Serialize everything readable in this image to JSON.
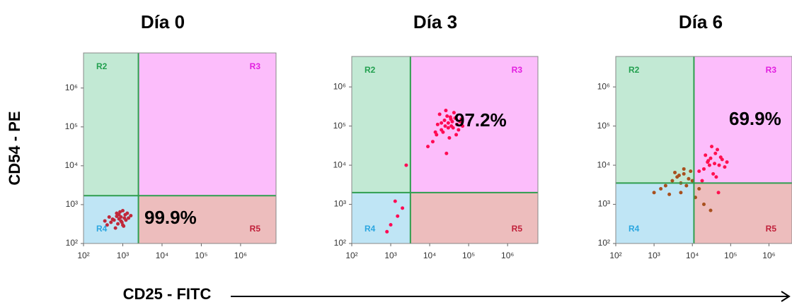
{
  "axis_labels": {
    "y": "CD54 - PE",
    "x": "CD25 - FITC"
  },
  "chart_data": [
    {
      "type": "scatter",
      "title": "Día 0",
      "xscale": "log",
      "yscale": "log",
      "xlim": [
        100,
        8000000
      ],
      "ylim": [
        100,
        8000000
      ],
      "xticks": [
        {
          "value": 100,
          "label": "10²"
        },
        {
          "value": 1000,
          "label": "10³"
        },
        {
          "value": 10000,
          "label": "10⁴"
        },
        {
          "value": 100000,
          "label": "10⁵"
        },
        {
          "value": 1000000,
          "label": "10⁶"
        }
      ],
      "yticks": [
        {
          "value": 100,
          "label": "10²"
        },
        {
          "value": 1000,
          "label": "10³"
        },
        {
          "value": 10000,
          "label": "10⁴"
        },
        {
          "value": 100000,
          "label": "10⁵"
        },
        {
          "value": 1000000,
          "label": "10⁶"
        }
      ],
      "gate_x": 2500,
      "gate_y": 1700,
      "regions": [
        {
          "name": "R2",
          "color": "#c2e9d4",
          "label_color": "#22a04f"
        },
        {
          "name": "R3",
          "color": "#fcbdfb",
          "label_color": "#e21fe0"
        },
        {
          "name": "R4",
          "color": "#bfe5f5",
          "label_color": "#2ba6e0"
        },
        {
          "name": "R5",
          "color": "#edbdbd",
          "label_color": "#c0203a"
        }
      ],
      "annotation": "99.9%",
      "series": [
        {
          "color": "#c0283a",
          "x": [
            400,
            550,
            700,
            900,
            1100,
            1300,
            650,
            800,
            1000,
            500,
            450,
            1200,
            1600,
            750,
            950,
            850,
            600,
            1050,
            1400,
            350,
            700,
            900,
            1150,
            800,
            1000
          ],
          "y": [
            300,
            420,
            500,
            380,
            450,
            600,
            250,
            550,
            700,
            350,
            480,
            400,
            520,
            320,
            350,
            650,
            400,
            280,
            450,
            380,
            600,
            480,
            550,
            430,
            300
          ]
        }
      ]
    },
    {
      "type": "scatter",
      "title": "Día 3",
      "xscale": "log",
      "yscale": "log",
      "xlim": [
        100,
        6000000
      ],
      "ylim": [
        100,
        6000000
      ],
      "xticks": [
        {
          "value": 100,
          "label": "10²"
        },
        {
          "value": 1000,
          "label": "10³"
        },
        {
          "value": 10000,
          "label": "10⁴"
        },
        {
          "value": 100000,
          "label": "10⁵"
        },
        {
          "value": 1000000,
          "label": "10⁶"
        }
      ],
      "yticks": [
        {
          "value": 100,
          "label": "10²"
        },
        {
          "value": 1000,
          "label": "10³"
        },
        {
          "value": 10000,
          "label": "10⁴"
        },
        {
          "value": 100000,
          "label": "10⁵"
        },
        {
          "value": 1000000,
          "label": "10⁶"
        }
      ],
      "gate_x": 3200,
      "gate_y": 2000,
      "regions": [
        {
          "name": "R2",
          "color": "#c2e9d4",
          "label_color": "#22a04f"
        },
        {
          "name": "R3",
          "color": "#fcbdfb",
          "label_color": "#e21fe0"
        },
        {
          "name": "R4",
          "color": "#bfe5f5",
          "label_color": "#2ba6e0"
        },
        {
          "name": "R5",
          "color": "#edbdbd",
          "label_color": "#c0203a"
        }
      ],
      "annotation": "97.2%",
      "series": [
        {
          "color": "#ff0a54",
          "x": [
            15000,
            20000,
            25000,
            30000,
            35000,
            40000,
            50000,
            60000,
            12000,
            18000,
            22000,
            28000,
            45000,
            70000,
            32000,
            26000,
            38000,
            55000,
            9000,
            16000,
            42000,
            24000,
            30000,
            48000,
            20000,
            34000,
            65000,
            14000,
            27000,
            36000,
            1000,
            1500,
            2000,
            1300,
            800,
            2500
          ],
          "y": [
            60000,
            80000,
            100000,
            120000,
            150000,
            90000,
            110000,
            130000,
            40000,
            200000,
            70000,
            180000,
            160000,
            100000,
            50000,
            250000,
            130000,
            80000,
            30000,
            110000,
            220000,
            140000,
            90000,
            60000,
            120000,
            170000,
            150000,
            70000,
            20000,
            100000,
            300,
            500,
            800,
            1200,
            200,
            10000
          ]
        }
      ]
    },
    {
      "type": "scatter",
      "title": "Día 6",
      "xscale": "log",
      "yscale": "log",
      "xlim": [
        100,
        4000000
      ],
      "ylim": [
        100,
        6000000
      ],
      "xticks": [
        {
          "value": 100,
          "label": "10²"
        },
        {
          "value": 1000,
          "label": "10³"
        },
        {
          "value": 10000,
          "label": "10⁴"
        },
        {
          "value": 100000,
          "label": "10⁵"
        },
        {
          "value": 1000000,
          "label": "10⁶"
        }
      ],
      "yticks": [
        {
          "value": 100,
          "label": "10²"
        },
        {
          "value": 1000,
          "label": "10³"
        },
        {
          "value": 10000,
          "label": "10⁴"
        },
        {
          "value": 100000,
          "label": "10⁵"
        },
        {
          "value": 1000000,
          "label": "10⁶"
        }
      ],
      "gate_x": 11000,
      "gate_y": 3500,
      "regions": [
        {
          "name": "R2",
          "color": "#c2e9d4",
          "label_color": "#22a04f"
        },
        {
          "name": "R3",
          "color": "#fcbdfb",
          "label_color": "#e21fe0"
        },
        {
          "name": "R4",
          "color": "#bfe5f5",
          "label_color": "#2ba6e0"
        },
        {
          "name": "R5",
          "color": "#edbdbd",
          "label_color": "#c0203a"
        }
      ],
      "annotation": "69.9%",
      "series": [
        {
          "color": "#ff1050",
          "x": [
            20000,
            25000,
            30000,
            40000,
            50000,
            60000,
            35000,
            45000,
            28000,
            70000,
            15000,
            22000,
            38000,
            55000,
            80000,
            32000,
            42000,
            26000,
            48000,
            18000
          ],
          "y": [
            8000,
            12000,
            15000,
            20000,
            10000,
            14000,
            6000,
            25000,
            10000,
            9000,
            7000,
            18000,
            11000,
            16000,
            12000,
            30000,
            5000,
            13000,
            2000,
            4000
          ]
        },
        {
          "color": "#a8501e",
          "x": [
            1000,
            2000,
            3000,
            4000,
            5000,
            6000,
            8000,
            9000,
            1500,
            2500,
            5000,
            7000,
            3500,
            6000,
            12000,
            20000,
            15000,
            30000,
            4500,
            10000
          ],
          "y": [
            2000,
            3000,
            4000,
            5000,
            3500,
            6000,
            4500,
            7000,
            2500,
            1800,
            2000,
            3000,
            6500,
            8000,
            1500,
            1000,
            2500,
            700,
            5500,
            4000
          ]
        }
      ]
    }
  ]
}
